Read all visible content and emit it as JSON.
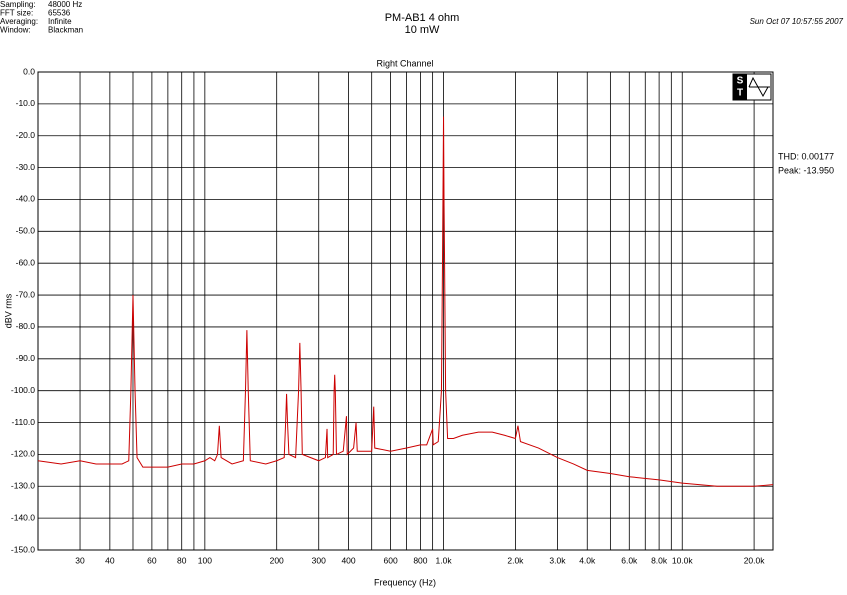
{
  "chart_data": {
    "type": "line",
    "title": "PM-AB1  4 ohm",
    "subtitle": "10 mW",
    "timestamp": "Sun Oct 07 10:57:55 2007",
    "plot_title": "Right Channel",
    "info": [
      {
        "label": "Sampling:",
        "value": "48000 Hz"
      },
      {
        "label": "FFT size:",
        "value": "65536"
      },
      {
        "label": "Averaging:",
        "value": "Infinite"
      },
      {
        "label": "Window:",
        "value": "Blackman"
      }
    ],
    "logo_letters": [
      "S",
      "T"
    ],
    "annotations": [
      "THD: 0.00177",
      "Peak: -13.950"
    ],
    "xlabel": "Frequency (Hz)",
    "ylabel": "dBV rms",
    "xscale": "log",
    "grid": true,
    "color": "#cc0000",
    "xlim": [
      20,
      24000
    ],
    "ylim": [
      -150,
      0
    ],
    "xticks": [
      30,
      40,
      60,
      80,
      100,
      200,
      300,
      400,
      600,
      800,
      {
        "value": 1000,
        "label": "1.0k"
      },
      {
        "value": 2000,
        "label": "2.0k"
      },
      {
        "value": 3000,
        "label": "3.0k"
      },
      {
        "value": 4000,
        "label": "4.0k"
      },
      {
        "value": 6000,
        "label": "6.0k"
      },
      {
        "value": 8000,
        "label": "8.0k"
      },
      {
        "value": 10000,
        "label": "10.0k"
      },
      {
        "value": 20000,
        "label": "20.0k"
      }
    ],
    "xminor": [
      50,
      70,
      90,
      500,
      700,
      900,
      5000,
      7000,
      9000
    ],
    "yticks": [
      {
        "value": 0,
        "label": "0.0"
      },
      {
        "value": -10,
        "label": "-10.0"
      },
      {
        "value": -20,
        "label": "-20.0"
      },
      {
        "value": -30,
        "label": "-30.0"
      },
      {
        "value": -40,
        "label": "-40.0"
      },
      {
        "value": -50,
        "label": "-50.0"
      },
      {
        "value": -60,
        "label": "-60.0"
      },
      {
        "value": -70,
        "label": "-70.0"
      },
      {
        "value": -80,
        "label": "-80.0"
      },
      {
        "value": -90,
        "label": "-90.0"
      },
      {
        "value": -100,
        "label": "-100.0"
      },
      {
        "value": -110,
        "label": "-110.0"
      },
      {
        "value": -120,
        "label": "-120.0"
      },
      {
        "value": -130,
        "label": "-130.0"
      },
      {
        "value": -140,
        "label": "-140.0"
      },
      {
        "value": -150,
        "label": "-150.0"
      }
    ],
    "x": [
      20,
      25,
      30,
      35,
      45,
      48,
      49,
      50,
      51,
      52,
      55,
      60,
      70,
      80,
      90,
      100,
      105,
      110,
      113,
      115,
      117,
      130,
      145,
      148,
      150,
      152,
      155,
      180,
      200,
      215,
      218,
      220,
      222,
      225,
      240,
      247,
      250,
      253,
      256,
      300,
      320,
      325,
      327,
      345,
      348,
      350,
      352,
      356,
      380,
      392,
      395,
      420,
      430,
      435,
      500,
      510,
      515,
      600,
      700,
      800,
      850,
      900,
      905,
      950,
      980,
      990,
      1000,
      1005,
      1010,
      1020,
      1040,
      1100,
      1200,
      1400,
      1600,
      1800,
      2000,
      2050,
      2100,
      2500,
      3000,
      3500,
      4000,
      5000,
      6000,
      8000,
      10000,
      14000,
      20000,
      24000
    ],
    "values": [
      -122,
      -123,
      -122,
      -123,
      -123,
      -122,
      -100,
      -70,
      -100,
      -121,
      -124,
      -124,
      -124,
      -123,
      -123,
      -122,
      -121,
      -122,
      -120,
      -111,
      -121,
      -123,
      -122,
      -100,
      -81,
      -100,
      -122,
      -123,
      -122,
      -121,
      -110,
      -101,
      -110,
      -120,
      -121,
      -100,
      -85,
      -100,
      -120,
      -122,
      -121,
      -112,
      -121,
      -120,
      -100,
      -95,
      -100,
      -120,
      -119,
      -108,
      -120,
      -118,
      -110,
      -119,
      -119,
      -105,
      -118,
      -119,
      -118,
      -117,
      -117,
      -112,
      -117,
      -116,
      -100,
      -60,
      -14,
      -42,
      -60,
      -100,
      -115,
      -115,
      -114,
      -113,
      -113,
      -114,
      -115,
      -111,
      -116,
      -118,
      -121,
      -123,
      -125,
      -126,
      -127,
      -128,
      -129,
      -130,
      -130,
      -129.5
    ]
  }
}
